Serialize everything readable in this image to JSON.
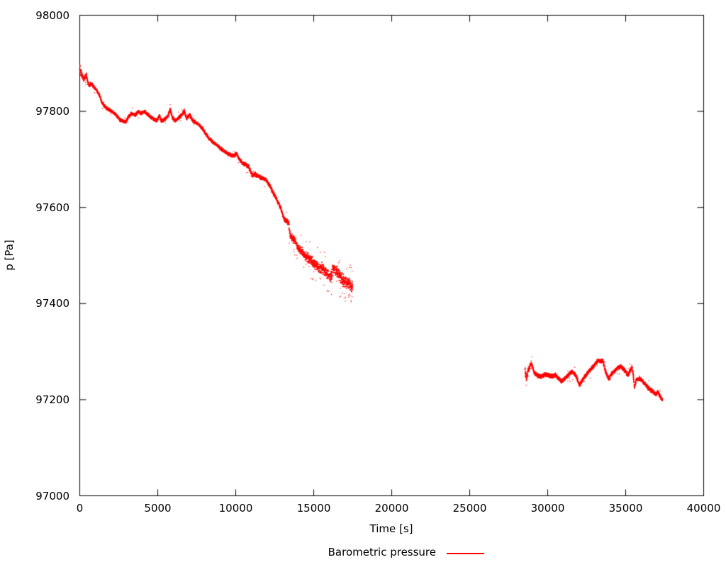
{
  "figure": {
    "background": "#ffffff",
    "text_color": "#000000",
    "axis_color": "#000000"
  },
  "chart_data": {
    "type": "scatter",
    "title": "",
    "xlabel": "Time [s]",
    "ylabel": "p [Pa]",
    "xlim": [
      0,
      40000
    ],
    "ylim": [
      97000,
      98000
    ],
    "xticks": [
      0,
      5000,
      10000,
      15000,
      20000,
      25000,
      30000,
      35000,
      40000
    ],
    "yticks": [
      97000,
      97200,
      97400,
      97600,
      97800,
      98000
    ],
    "grid": false,
    "border": "full-box-mirrored-inward-ticks",
    "tick_length": 9,
    "legend": {
      "position": "bottom-center",
      "entries": [
        {
          "label": "Barometric pressure",
          "color": "#ff0000",
          "sample": "line"
        }
      ]
    },
    "series": [
      {
        "name": "Barometric pressure",
        "color": "#ff0000",
        "marker": "dot",
        "segments": [
          {
            "points": [
              [
                0,
                97888
              ],
              [
                80,
                97882
              ],
              [
                160,
                97872
              ],
              [
                250,
                97866
              ],
              [
                340,
                97872
              ],
              [
                430,
                97876
              ],
              [
                520,
                97860
              ],
              [
                610,
                97853
              ],
              [
                700,
                97858
              ],
              [
                800,
                97855
              ],
              [
                950,
                97849
              ],
              [
                1100,
                97843
              ],
              [
                1250,
                97834
              ],
              [
                1400,
                97820
              ],
              [
                1550,
                97812
              ],
              [
                1750,
                97806
              ],
              [
                2000,
                97801
              ],
              [
                2300,
                97793
              ],
              [
                2600,
                97782
              ],
              [
                2950,
                97778
              ],
              [
                3150,
                97790
              ],
              [
                3350,
                97796
              ],
              [
                3550,
                97792
              ],
              [
                3750,
                97799
              ],
              [
                3950,
                97796
              ],
              [
                4150,
                97800
              ],
              [
                4350,
                97794
              ],
              [
                4550,
                97788
              ],
              [
                4750,
                97784
              ],
              [
                4950,
                97780
              ],
              [
                5100,
                97791
              ],
              [
                5250,
                97779
              ],
              [
                5450,
                97784
              ],
              [
                5650,
                97789
              ],
              [
                5800,
                97805
              ],
              [
                5950,
                97786
              ],
              [
                6150,
                97781
              ],
              [
                6350,
                97787
              ],
              [
                6550,
                97793
              ],
              [
                6700,
                97801
              ],
              [
                6850,
                97785
              ],
              [
                7050,
                97793
              ],
              [
                7250,
                97780
              ],
              [
                7450,
                97777
              ],
              [
                7650,
                97771
              ],
              [
                7850,
                97765
              ],
              [
                8050,
                97755
              ],
              [
                8250,
                97745
              ],
              [
                8500,
                97737
              ],
              [
                8800,
                97729
              ],
              [
                9100,
                97721
              ],
              [
                9400,
                97714
              ],
              [
                9700,
                97709
              ],
              [
                9900,
                97707
              ],
              [
                10050,
                97713
              ],
              [
                10200,
                97702
              ],
              [
                10400,
                97694
              ],
              [
                10820,
                97685
              ],
              [
                11050,
                97667
              ],
              [
                11250,
                97669
              ],
              [
                11500,
                97664
              ],
              [
                11950,
                97657
              ],
              [
                12180,
                97645
              ],
              [
                12400,
                97631
              ],
              [
                12640,
                97616
              ],
              [
                12860,
                97601
              ],
              [
                13090,
                97576
              ],
              [
                13320,
                97569
              ],
              [
                13400,
                97566
              ],
              [
                13470,
                97545
              ],
              [
                13550,
                97540
              ],
              [
                13770,
                97532
              ],
              [
                14000,
                97516
              ],
              [
                14230,
                97509
              ],
              [
                14460,
                97499
              ],
              [
                14680,
                97494
              ],
              [
                14910,
                97487
              ],
              [
                15140,
                97480
              ],
              [
                15360,
                97474
              ],
              [
                15590,
                97473
              ],
              [
                15820,
                97464
              ],
              [
                16050,
                97455
              ],
              [
                16270,
                97473
              ],
              [
                16500,
                97466
              ],
              [
                16730,
                97455
              ],
              [
                16950,
                97446
              ],
              [
                17180,
                97443
              ],
              [
                17400,
                97437
              ],
              [
                17500,
                97434
              ]
            ],
            "noise_pa": [
              [
                0,
                10
              ],
              [
                300,
                6
              ],
              [
                600,
                4
              ],
              [
                9000,
                4
              ],
              [
                11000,
                5
              ],
              [
                13000,
                5
              ],
              [
                13500,
                8
              ],
              [
                14500,
                11
              ],
              [
                15300,
                13
              ],
              [
                16200,
                14
              ],
              [
                17500,
                13
              ]
            ],
            "outlier_prob": [
              [
                0,
                0.012
              ],
              [
                13400,
                0.02
              ],
              [
                14500,
                0.06
              ],
              [
                16000,
                0.09
              ],
              [
                17500,
                0.1
              ]
            ]
          },
          {
            "points": [
              [
                28550,
                97256
              ],
              [
                28650,
                97248
              ],
              [
                28770,
                97262
              ],
              [
                28950,
                97276
              ],
              [
                29150,
                97256
              ],
              [
                29320,
                97250
              ],
              [
                29590,
                97248
              ],
              [
                29800,
                97252
              ],
              [
                30045,
                97251
              ],
              [
                30270,
                97248
              ],
              [
                30500,
                97252
              ],
              [
                30700,
                97243
              ],
              [
                30900,
                97238
              ],
              [
                31140,
                97246
              ],
              [
                31360,
                97252
              ],
              [
                31590,
                97259
              ],
              [
                31820,
                97249
              ],
              [
                32045,
                97230
              ],
              [
                32320,
                97246
              ],
              [
                32640,
                97259
              ],
              [
                32860,
                97267
              ],
              [
                33090,
                97276
              ],
              [
                33230,
                97282
              ],
              [
                33410,
                97280
              ],
              [
                33545,
                97281
              ],
              [
                33680,
                97262
              ],
              [
                33910,
                97243
              ],
              [
                34140,
                97255
              ],
              [
                34455,
                97265
              ],
              [
                34680,
                97270
              ],
              [
                34910,
                97262
              ],
              [
                35140,
                97251
              ],
              [
                35270,
                97260
              ],
              [
                35410,
                97268
              ],
              [
                35500,
                97248
              ],
              [
                35560,
                97225
              ],
              [
                35680,
                97240
              ],
              [
                35900,
                97244
              ],
              [
                36045,
                97240
              ],
              [
                36230,
                97233
              ],
              [
                36364,
                97227
              ],
              [
                36640,
                97219
              ],
              [
                36860,
                97214
              ],
              [
                36955,
                97211
              ],
              [
                37050,
                97216
              ],
              [
                37180,
                97208
              ],
              [
                37300,
                97203
              ],
              [
                37364,
                97199
              ]
            ],
            "noise_pa": [
              [
                28550,
                13
              ],
              [
                28800,
                7
              ],
              [
                29100,
                5
              ],
              [
                37364,
                5
              ]
            ],
            "outlier_prob": [
              [
                28550,
                0.05
              ],
              [
                29000,
                0.02
              ],
              [
                37364,
                0.02
              ]
            ]
          }
        ]
      }
    ]
  }
}
